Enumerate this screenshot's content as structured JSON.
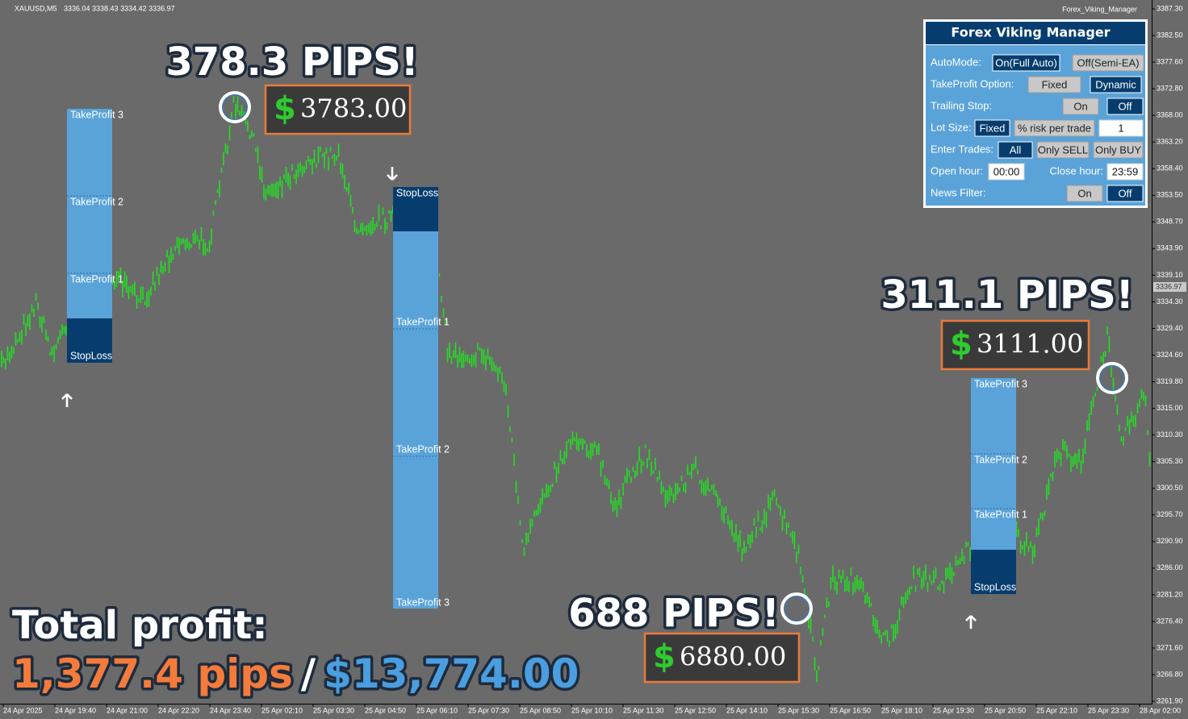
{
  "header": {
    "symbol": "XAUUSD,M5",
    "quotes": "3336.04 3338.43 3334.42 3336.97",
    "indicator": "Forex_Viking_Manager"
  },
  "price_axis": [
    "3387.30",
    "3382.50",
    "3377.60",
    "3372.80",
    "3368.00",
    "3363.20",
    "3358.40",
    "3353.50",
    "3348.70",
    "3343.90",
    "3339.10",
    "3334.30",
    "3329.40",
    "3324.60",
    "3319.80",
    "3315.00",
    "3310.30",
    "3305.30",
    "3300.50",
    "3295.70",
    "3290.90",
    "3286.00",
    "3281.20",
    "3276.40",
    "3271.60",
    "3266.80",
    "3261.90"
  ],
  "current_price": "3336.97",
  "time_axis": [
    "24 Apr 2025",
    "24 Apr 19:40",
    "24 Apr 21:00",
    "24 Apr 22:20",
    "24 Apr 23:40",
    "25 Apr 02:10",
    "25 Apr 03:30",
    "25 Apr 04:50",
    "25 Apr 06:10",
    "25 Apr 07:30",
    "25 Apr 08:50",
    "25 Apr 10:10",
    "25 Apr 11:30",
    "25 Apr 12:50",
    "25 Apr 14:10",
    "25 Apr 15:30",
    "25 Apr 16:50",
    "25 Apr 18:10",
    "25 Apr 19:30",
    "25 Apr 20:50",
    "25 Apr 22:10",
    "25 Apr 23:30",
    "28 Apr 02:00"
  ],
  "panel": {
    "title": "Forex Viking Manager",
    "rows": [
      {
        "label": "AutoMode:",
        "options": [
          "On(Full Auto)",
          "Off(Semi-EA)"
        ],
        "selected": 0
      },
      {
        "label": "TakeProfit Option:",
        "options": [
          "Fixed",
          "Dynamic"
        ],
        "selected": 1
      },
      {
        "label": "Trailing Stop:",
        "options": [
          "On",
          "Off"
        ],
        "selected": 1
      },
      {
        "label": "Lot Size:",
        "options": [
          "Fixed",
          "% risk per trade"
        ],
        "selected": 0,
        "input": "1"
      },
      {
        "label": "Enter Trades:",
        "options": [
          "All",
          "Only SELL",
          "Only BUY"
        ],
        "selected": 0
      },
      {
        "label": "Open hour:",
        "input": "00:00",
        "label2": "Close hour:",
        "input2": "23:59"
      },
      {
        "label": "News Filter:",
        "options": [
          "On",
          "Off"
        ],
        "selected": 1
      }
    ]
  },
  "trades": [
    {
      "levels": [
        "TakeProfit 3",
        "TakeProfit 2",
        "TakeProfit 1",
        "StopLoss"
      ]
    },
    {
      "levels": [
        "StopLoss",
        "TakeProfit 1",
        "TakeProfit 2",
        "TakeProfit 3"
      ]
    },
    {
      "levels": [
        "TakeProfit 3",
        "TakeProfit 2",
        "TakeProfit 1",
        "StopLoss"
      ]
    }
  ],
  "annotations": [
    {
      "pips": "378.3 PIPS!",
      "currency": "$",
      "amount": "3783.00"
    },
    {
      "pips": "311.1 PIPS!",
      "currency": "$",
      "amount": "3111.00"
    },
    {
      "pips": "688 PIPS!",
      "currency": "$",
      "amount": "6880.00"
    }
  ],
  "total": {
    "label": "Total profit:",
    "pips": "1,377.4 pips",
    "separator": "/",
    "usd": "$13,774.00"
  }
}
